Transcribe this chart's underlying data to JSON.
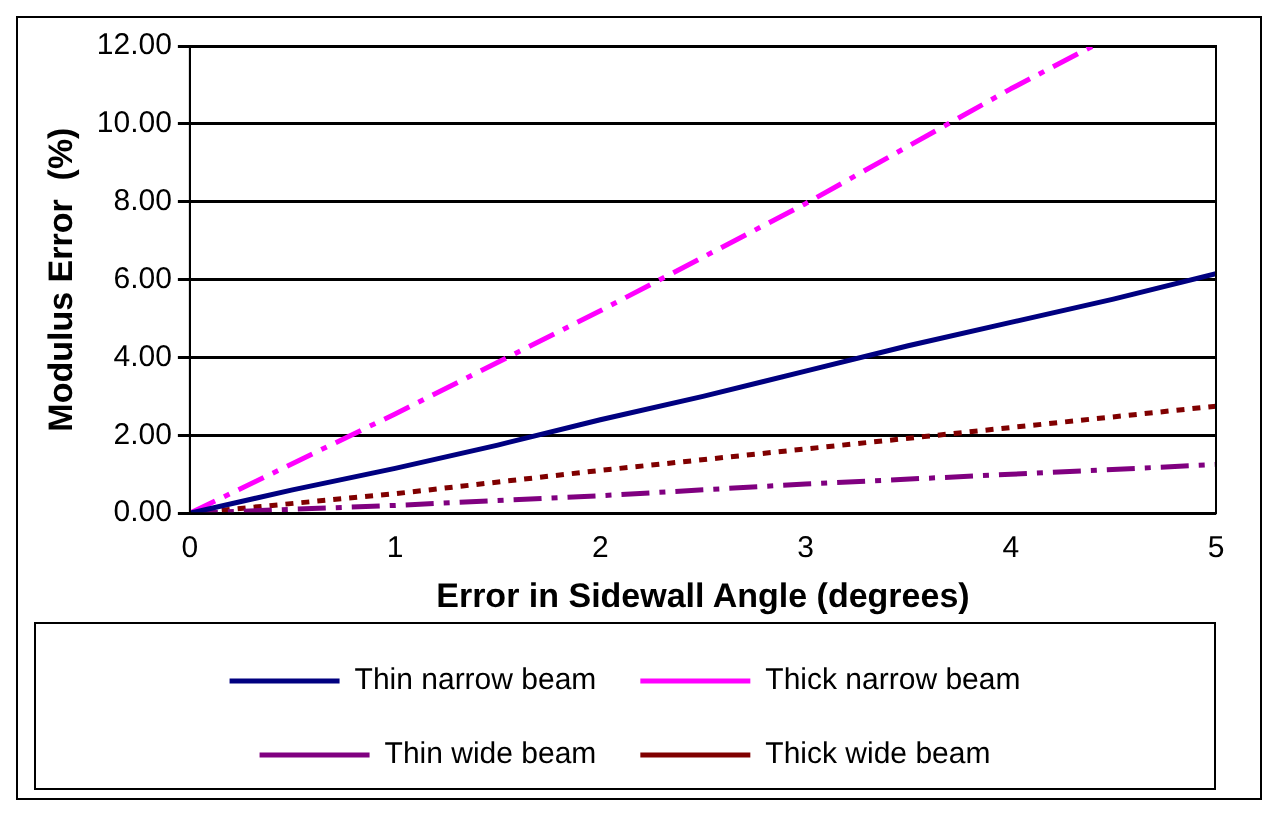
{
  "chart_data": {
    "type": "line",
    "xlabel": "Error in Sidewall Angle (degrees)",
    "ylabel": "Modulus Error  (%)",
    "xlim": [
      0,
      5
    ],
    "xticks": [
      0,
      1,
      2,
      3,
      4,
      5
    ],
    "ylim": [
      0,
      12
    ],
    "yticks": [
      {
        "value": 0,
        "label": "0.00"
      },
      {
        "value": 2,
        "label": "2.00"
      },
      {
        "value": 4,
        "label": "4.00"
      },
      {
        "value": 6,
        "label": "6.00"
      },
      {
        "value": 8,
        "label": "8.00"
      },
      {
        "value": 10,
        "label": "10.00"
      },
      {
        "value": 12,
        "label": "12.00"
      }
    ],
    "grid": "y",
    "legend": "bottom",
    "marker": "none",
    "series": [
      {
        "name": "Thin narrow beam",
        "color": "#000080",
        "line_style": "solid",
        "x": [
          0,
          0.5,
          1,
          1.5,
          2,
          2.5,
          3,
          3.5,
          4,
          4.5,
          5
        ],
        "values": [
          0,
          0.6,
          1.15,
          1.75,
          2.4,
          3.0,
          3.65,
          4.3,
          4.9,
          5.5,
          6.15
        ]
      },
      {
        "name": "Thick narrow beam",
        "color": "#ff00ff",
        "line_style": "dashdot",
        "x": [
          0,
          1,
          2,
          3,
          4,
          4.4
        ],
        "values": [
          0,
          2.55,
          5.2,
          7.95,
          10.9,
          12
        ]
      },
      {
        "name": "Thin wide beam",
        "color": "#800080",
        "line_style": "dashdot",
        "x": [
          0,
          1,
          2,
          3,
          4,
          5
        ],
        "values": [
          0,
          0.2,
          0.45,
          0.75,
          1.0,
          1.25
        ]
      },
      {
        "name": "Thick wide beam",
        "color": "#800000",
        "line_style": "dotted",
        "x": [
          0,
          1,
          2,
          3,
          4,
          5
        ],
        "values": [
          0,
          0.5,
          1.1,
          1.65,
          2.2,
          2.75
        ]
      }
    ]
  }
}
